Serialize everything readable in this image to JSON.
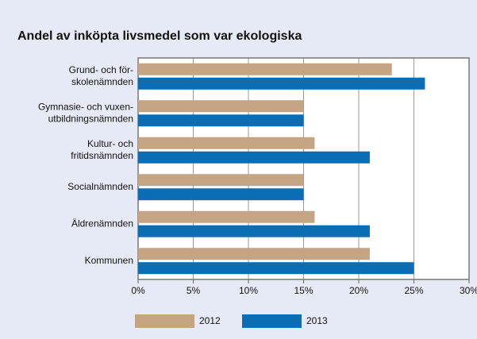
{
  "chart_data": {
    "type": "hbar",
    "title": "Andel av inköpta livsmedel som var ekologiska",
    "categories": [
      [
        "Grund- och för-",
        "skolenämnden"
      ],
      [
        "Gymnasie- och vuxen-",
        "utbildningsnämnden"
      ],
      [
        "Kultur- och",
        "fritidsnämnden"
      ],
      [
        "Socialnämnden"
      ],
      [
        "Äldrenämnden"
      ],
      [
        "Kommunen"
      ]
    ],
    "series": [
      {
        "name": "2012",
        "color": "#c4a483",
        "values": [
          23,
          15,
          16,
          15,
          16,
          21
        ]
      },
      {
        "name": "2013",
        "color": "#0b6db3",
        "values": [
          26,
          15,
          21,
          15,
          21,
          25
        ]
      }
    ],
    "xlim": [
      0,
      30
    ],
    "xticks": [
      {
        "value": 0,
        "label": "0%"
      },
      {
        "value": 5,
        "label": "5%"
      },
      {
        "value": 10,
        "label": "10%"
      },
      {
        "value": 15,
        "label": "15%"
      },
      {
        "value": 20,
        "label": "20%"
      },
      {
        "value": 25,
        "label": "25%"
      },
      {
        "value": 30,
        "label": "30%"
      }
    ],
    "grid": true
  }
}
